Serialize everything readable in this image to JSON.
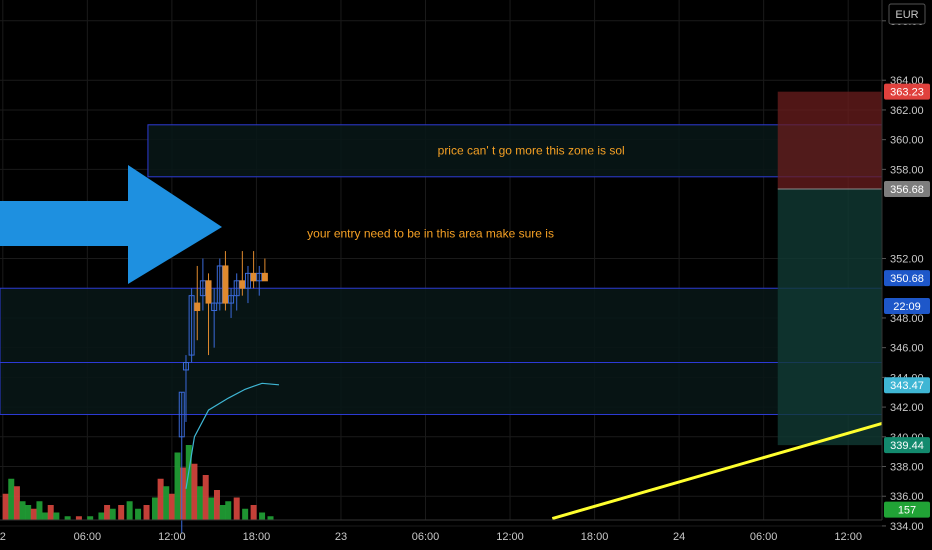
{
  "chart_data": {
    "type": "candlestick",
    "currency": "EUR",
    "ylim": [
      334.4,
      369.4
    ],
    "y_ticks": [
      "368.00",
      "364.00",
      "362.00",
      "360.00",
      "358.00",
      "352.00",
      "348.00",
      "346.00",
      "344.00",
      "342.00",
      "340.00",
      "338.00",
      "336.00",
      "334.00"
    ],
    "x_ticks": [
      {
        "label": "2",
        "x": -4
      },
      {
        "label": "06:00",
        "x": 2
      },
      {
        "label": "12:00",
        "x": 8
      },
      {
        "label": "18:00",
        "x": 14
      },
      {
        "label": "23",
        "x": 20
      },
      {
        "label": "06:00",
        "x": 26
      },
      {
        "label": "12:00",
        "x": 32
      },
      {
        "label": "18:00",
        "x": 38
      },
      {
        "label": "24",
        "x": 44
      },
      {
        "label": "06:00",
        "x": 50
      },
      {
        "label": "12:00",
        "x": 56
      }
    ],
    "x_range": [
      -4.2,
      58.4
    ],
    "candles": [
      {
        "x": 8.7,
        "o": 340.0,
        "h": 343.0,
        "l": 333.5,
        "c": 343.0
      },
      {
        "x": 9.0,
        "o": 344.5,
        "h": 345.5,
        "l": 341.0,
        "c": 345.0
      },
      {
        "x": 9.4,
        "o": 345.5,
        "h": 350.0,
        "l": 345.0,
        "c": 349.5
      },
      {
        "x": 9.8,
        "o": 349.0,
        "h": 351.5,
        "l": 346.5,
        "c": 348.5
      },
      {
        "x": 10.2,
        "o": 349.5,
        "h": 352.0,
        "l": 348.5,
        "c": 350.5
      },
      {
        "x": 10.6,
        "o": 350.5,
        "h": 351.0,
        "l": 345.5,
        "c": 349.0
      },
      {
        "x": 11.0,
        "o": 348.5,
        "h": 350.0,
        "l": 346.0,
        "c": 349.0
      },
      {
        "x": 11.4,
        "o": 349.0,
        "h": 352.0,
        "l": 348.5,
        "c": 351.5
      },
      {
        "x": 11.8,
        "o": 351.5,
        "h": 352.5,
        "l": 348.5,
        "c": 349.0
      },
      {
        "x": 12.2,
        "o": 349.0,
        "h": 350.0,
        "l": 348.0,
        "c": 349.5
      },
      {
        "x": 12.6,
        "o": 349.5,
        "h": 351.0,
        "l": 348.5,
        "c": 350.5
      },
      {
        "x": 13.0,
        "o": 350.5,
        "h": 352.5,
        "l": 349.5,
        "c": 350.0
      },
      {
        "x": 13.4,
        "o": 350.0,
        "h": 351.5,
        "l": 349.0,
        "c": 351.0
      },
      {
        "x": 13.8,
        "o": 351.0,
        "h": 352.5,
        "l": 350.0,
        "c": 350.5
      },
      {
        "x": 14.2,
        "o": 350.5,
        "h": 351.5,
        "l": 349.5,
        "c": 351.0
      },
      {
        "x": 14.6,
        "o": 351.0,
        "h": 352.0,
        "l": 350.5,
        "c": 350.5
      }
    ],
    "moving_average": [
      {
        "x": 9.0,
        "y": 336.5
      },
      {
        "x": 9.6,
        "y": 340.0
      },
      {
        "x": 10.6,
        "y": 341.8
      },
      {
        "x": 12.0,
        "y": 342.6
      },
      {
        "x": 13.2,
        "y": 343.2
      },
      {
        "x": 14.4,
        "y": 343.6
      },
      {
        "x": 15.6,
        "y": 343.5
      }
    ],
    "zones": [
      {
        "y_top": 361.0,
        "y_bottom": 357.5,
        "x_start": 6.3,
        "x_end": 58.4
      },
      {
        "y_top": 350.0,
        "y_bottom": 345.0,
        "x_start": -4.2,
        "x_end": 58.4
      },
      {
        "y_top": 345.0,
        "y_bottom": 341.5,
        "x_start": -4.2,
        "x_end": 58.4
      }
    ],
    "position": {
      "x_start": 51.0,
      "x_end": 58.4,
      "stop": 363.23,
      "entry": 356.68,
      "target": 339.44,
      "risk_color": "#6b1e1e",
      "reward_color": "#103a33"
    },
    "trendline": {
      "x1": 35.0,
      "y1": 334.5,
      "x2": 58.4,
      "y2": 340.9,
      "color": "#ffff2e"
    },
    "price_tags": [
      {
        "label": "363.23",
        "value": 363.23,
        "color": "#e0413d"
      },
      {
        "label": "356.68",
        "value": 356.68,
        "color": "#7d7d7d"
      },
      {
        "label": "350.68",
        "value": 350.68,
        "color": "#1e57c9"
      },
      {
        "label": "22:09",
        "value": 348.8,
        "color": "#1e57c9"
      },
      {
        "label": "343.47",
        "value": 343.47,
        "color": "#3fb6d4"
      },
      {
        "label": "339.44",
        "value": 339.44,
        "color": "#138a6e"
      },
      {
        "label": "157",
        "value": 335.1,
        "color": "#21a336"
      }
    ],
    "annotations": [
      {
        "text": "price can' t go more this zone is sol",
        "x": 33.5,
        "y": 359.0,
        "anchor": "middle"
      },
      {
        "text": "your entry need to be in this area make sure is",
        "x": 17.6,
        "y": 353.4,
        "anchor": "start"
      }
    ],
    "volume": [
      {
        "x": -3.8,
        "v": 7,
        "up": false
      },
      {
        "x": -3.4,
        "v": 11,
        "up": true
      },
      {
        "x": -3.0,
        "v": 9,
        "up": false
      },
      {
        "x": -2.6,
        "v": 5,
        "up": true
      },
      {
        "x": -2.2,
        "v": 4,
        "up": true
      },
      {
        "x": -1.8,
        "v": 3,
        "up": false
      },
      {
        "x": -1.4,
        "v": 5,
        "up": true
      },
      {
        "x": -1.0,
        "v": 2,
        "up": true
      },
      {
        "x": -0.6,
        "v": 4,
        "up": false
      },
      {
        "x": -0.2,
        "v": 2,
        "up": true
      },
      {
        "x": 0.6,
        "v": 1,
        "up": true
      },
      {
        "x": 1.4,
        "v": 1,
        "up": false
      },
      {
        "x": 2.2,
        "v": 1,
        "up": true
      },
      {
        "x": 3.0,
        "v": 2,
        "up": true
      },
      {
        "x": 3.4,
        "v": 4,
        "up": false
      },
      {
        "x": 3.8,
        "v": 3,
        "up": true
      },
      {
        "x": 4.4,
        "v": 4,
        "up": false
      },
      {
        "x": 5.0,
        "v": 5,
        "up": true
      },
      {
        "x": 5.6,
        "v": 3,
        "up": true
      },
      {
        "x": 6.2,
        "v": 4,
        "up": false
      },
      {
        "x": 6.8,
        "v": 6,
        "up": true
      },
      {
        "x": 7.2,
        "v": 11,
        "up": false
      },
      {
        "x": 7.6,
        "v": 9,
        "up": true
      },
      {
        "x": 8.0,
        "v": 7,
        "up": false
      },
      {
        "x": 8.4,
        "v": 18,
        "up": true
      },
      {
        "x": 8.8,
        "v": 14,
        "up": false
      },
      {
        "x": 9.2,
        "v": 20,
        "up": true
      },
      {
        "x": 9.6,
        "v": 15,
        "up": false
      },
      {
        "x": 10.0,
        "v": 9,
        "up": true
      },
      {
        "x": 10.4,
        "v": 12,
        "up": false
      },
      {
        "x": 10.8,
        "v": 6,
        "up": true
      },
      {
        "x": 11.2,
        "v": 8,
        "up": false
      },
      {
        "x": 11.6,
        "v": 4,
        "up": true
      },
      {
        "x": 12.0,
        "v": 5,
        "up": true
      },
      {
        "x": 12.6,
        "v": 6,
        "up": false
      },
      {
        "x": 13.2,
        "v": 3,
        "up": true
      },
      {
        "x": 13.8,
        "v": 4,
        "up": false
      },
      {
        "x": 14.4,
        "v": 2,
        "up": true
      },
      {
        "x": 15.0,
        "v": 1,
        "up": true
      }
    ],
    "volume_max": 20,
    "colors": {
      "up": "#21a336",
      "down": "#d9473e",
      "zone_stroke": "#2d3bd6",
      "zone_fill": "#081818",
      "ma_line": "#3fb6d4",
      "arrow": "#1e90e0",
      "grid": "#1a1a1a"
    }
  }
}
